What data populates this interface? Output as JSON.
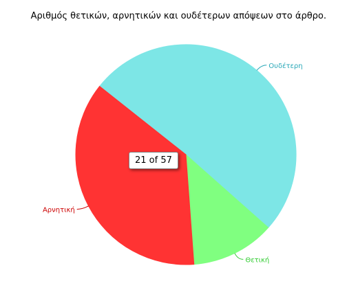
{
  "chart_data": {
    "type": "pie",
    "title": "Αριθμός θετικών, αρνητικών και ουδέτερων απόψεων στο άρθρο.",
    "slices": [
      {
        "label": "Ουδέτερη",
        "value": 29,
        "color": "#7de6e6",
        "label_color": "#2aa8b8"
      },
      {
        "label": "Θετική",
        "value": 7,
        "color": "#80ff80",
        "label_color": "#33cc33"
      },
      {
        "label": "Αρνητική",
        "value": 21,
        "color": "#ff3333",
        "label_color": "#cc0000"
      }
    ],
    "total": 57,
    "tooltip": "21 of 57",
    "legend": "none"
  }
}
